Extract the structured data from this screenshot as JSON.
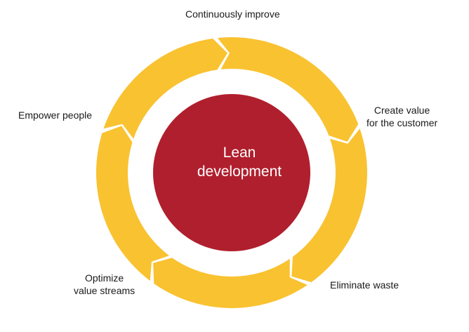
{
  "colors": {
    "ring": "#f9c231",
    "core": "#b01f2d",
    "background": "#ffffff",
    "text": "#1a1a1a",
    "core_text": "#ffffff"
  },
  "center": {
    "line1": "Lean",
    "line2": "development"
  },
  "cycle_steps": [
    {
      "id": "continuously-improve",
      "lines": [
        "Continuously improve"
      ]
    },
    {
      "id": "create-value",
      "lines": [
        "Create value",
        "for the customer"
      ]
    },
    {
      "id": "eliminate-waste",
      "lines": [
        "Eliminate waste"
      ]
    },
    {
      "id": "optimize-value-streams",
      "lines": [
        "Optimize",
        "value streams"
      ]
    },
    {
      "id": "empower-people",
      "lines": [
        "Empower people"
      ]
    }
  ]
}
